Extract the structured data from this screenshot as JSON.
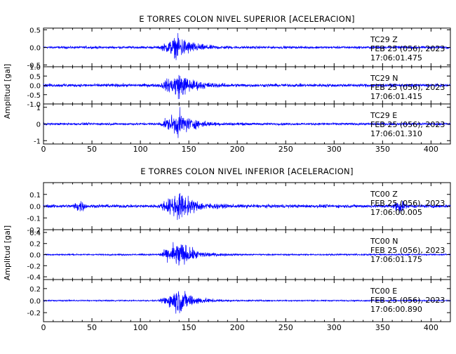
{
  "chart_data": [
    {
      "type": "line",
      "title": "E TORRES COLON NIVEL SUPERIOR [ACELERACION]",
      "ylabel": "Amplitud [gal]",
      "xlim": [
        0,
        420
      ],
      "x_ticks": [
        "0",
        "50",
        "100",
        "150",
        "200",
        "250",
        "300",
        "350",
        "400"
      ],
      "line_color": "#0000ff",
      "panels": [
        {
          "channel": "TC29   Z",
          "date": "FEB 25 (056), 2023",
          "time": "17:06:01.475",
          "ylim": [
            -0.55,
            0.55
          ],
          "y_ticks": [
            "0.5",
            "0.0",
            "-0.5"
          ],
          "y_tick_values": [
            0.5,
            0.0,
            -0.5
          ],
          "peak_amplitude": 0.45,
          "noise_level": 0.05
        },
        {
          "channel": "TC29   N",
          "date": "FEB 25 (056), 2023",
          "time": "17:06:01.415",
          "ylim": [
            -1.0,
            1.0
          ],
          "y_ticks": [
            "1.0",
            "0.5",
            "0.0",
            "-0.5",
            "-1.0"
          ],
          "y_tick_values": [
            1.0,
            0.5,
            0.0,
            -0.5,
            -1.0
          ],
          "peak_amplitude": 0.9,
          "noise_level": 0.12
        },
        {
          "channel": "TC29   E",
          "date": "FEB 25 (056), 2023",
          "time": "17:06:01.310",
          "ylim": [
            -1.2,
            1.2
          ],
          "y_ticks": [
            "1",
            "0",
            "-1"
          ],
          "y_tick_values": [
            1,
            0,
            -1
          ],
          "peak_amplitude": 1.0,
          "noise_level": 0.1
        }
      ]
    },
    {
      "type": "line",
      "title": "E TORRES COLON NIVEL INFERIOR [ACELERACION]",
      "ylabel": "Amplitud [gal]",
      "xlim": [
        0,
        420
      ],
      "x_ticks": [
        "0",
        "50",
        "100",
        "150",
        "200",
        "250",
        "300",
        "350",
        "400"
      ],
      "line_color": "#0000ff",
      "panels": [
        {
          "channel": "TC00   Z",
          "date": "FEB 25 (056), 2023",
          "time": "17:06:00.005",
          "ylim": [
            -0.2,
            0.2
          ],
          "y_ticks": [
            "0.1",
            "0.0",
            "-0.1",
            "-0.2"
          ],
          "y_tick_values": [
            0.1,
            0.0,
            -0.1,
            -0.2
          ],
          "peak_amplitude": 0.16,
          "noise_level": 0.02
        },
        {
          "channel": "TC00   N",
          "date": "FEB 25 (056), 2023",
          "time": "17:06:01.175",
          "ylim": [
            -0.45,
            0.45
          ],
          "y_ticks": [
            "0.4",
            "0.2",
            "0.0",
            "-0.2",
            "-0.4"
          ],
          "y_tick_values": [
            0.4,
            0.2,
            0.0,
            -0.2,
            -0.4
          ],
          "peak_amplitude": 0.35,
          "noise_level": 0.02
        },
        {
          "channel": "TC00   E",
          "date": "FEB 25 (056), 2023",
          "time": "17:06:00.890",
          "ylim": [
            -0.35,
            0.35
          ],
          "y_ticks": [
            "0.2",
            "0.0",
            "-0.2"
          ],
          "y_tick_values": [
            0.2,
            0.0,
            -0.2
          ],
          "peak_amplitude": 0.3,
          "noise_level": 0.015
        }
      ]
    }
  ]
}
